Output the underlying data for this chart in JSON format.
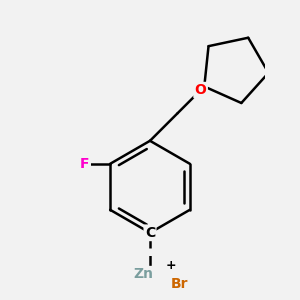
{
  "bg_color": "#f2f2f2",
  "bond_color": "#000000",
  "F_color": "#ff00cc",
  "O_color": "#ff0000",
  "Zn_color": "#7a9e9e",
  "Br_color": "#cc6600",
  "line_width": 1.8,
  "figsize": [
    3.0,
    3.0
  ],
  "dpi": 100,
  "xlim": [
    -2.5,
    2.5
  ],
  "ylim": [
    -3.2,
    3.2
  ]
}
